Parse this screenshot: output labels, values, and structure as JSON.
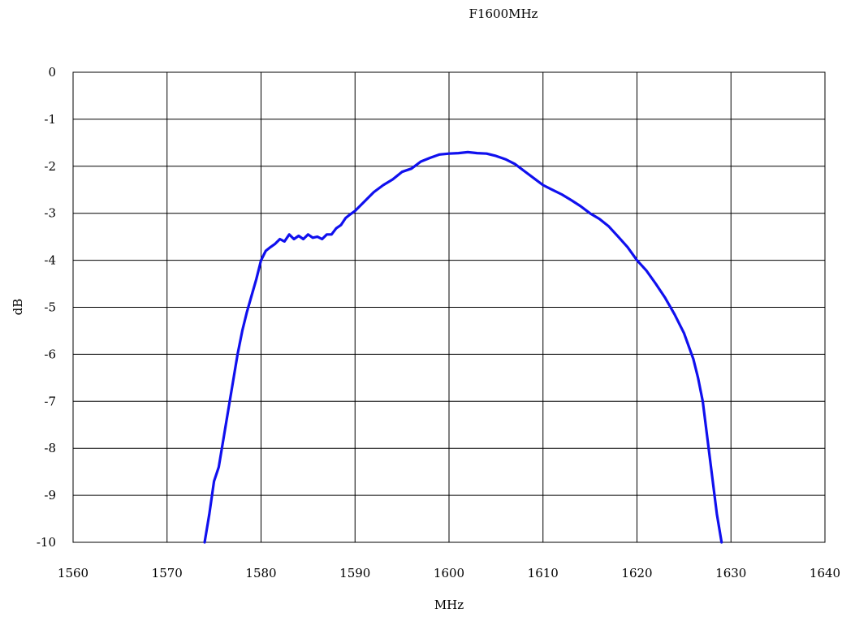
{
  "chart_data": {
    "type": "line",
    "title": "F1600MHz",
    "xlabel": "MHz",
    "ylabel": "dB",
    "xlim": [
      1560,
      1640
    ],
    "ylim": [
      -10,
      0
    ],
    "xticks": [
      1560,
      1570,
      1580,
      1590,
      1600,
      1610,
      1620,
      1630,
      1640
    ],
    "yticks": [
      0,
      -1,
      -2,
      -3,
      -4,
      -5,
      -6,
      -7,
      -8,
      -9,
      -10
    ],
    "grid": true,
    "line_color": "#1010ee",
    "series": [
      {
        "x": [
          1574,
          1574.5,
          1575,
          1575.5,
          1576,
          1576.5,
          1577,
          1577.5,
          1578,
          1578.5,
          1579,
          1579.5,
          1580,
          1580.5,
          1581,
          1581.5,
          1582,
          1582.5,
          1583,
          1583.5,
          1584,
          1584.5,
          1585,
          1585.5,
          1586,
          1586.5,
          1587,
          1587.5,
          1588,
          1588.5,
          1589,
          1589.5,
          1590,
          1591,
          1592,
          1593,
          1594,
          1595,
          1596,
          1597,
          1598,
          1599,
          1600,
          1601,
          1602,
          1603,
          1604,
          1605,
          1606,
          1607,
          1608,
          1609,
          1610,
          1611,
          1612,
          1613,
          1614,
          1615,
          1616,
          1617,
          1618,
          1619,
          1620,
          1621,
          1622,
          1623,
          1624,
          1625,
          1626,
          1626.5,
          1627,
          1627.5,
          1628,
          1628.5,
          1629
        ],
        "y": [
          -10,
          -9.4,
          -8.7,
          -8.4,
          -7.8,
          -7.2,
          -6.6,
          -6.0,
          -5.5,
          -5.1,
          -4.75,
          -4.4,
          -4.0,
          -3.8,
          -3.72,
          -3.65,
          -3.55,
          -3.6,
          -3.45,
          -3.55,
          -3.48,
          -3.55,
          -3.45,
          -3.52,
          -3.5,
          -3.55,
          -3.45,
          -3.45,
          -3.32,
          -3.25,
          -3.1,
          -3.02,
          -2.95,
          -2.75,
          -2.55,
          -2.4,
          -2.28,
          -2.12,
          -2.05,
          -1.9,
          -1.82,
          -1.75,
          -1.73,
          -1.72,
          -1.7,
          -1.72,
          -1.73,
          -1.78,
          -1.85,
          -1.95,
          -2.1,
          -2.25,
          -2.4,
          -2.5,
          -2.6,
          -2.72,
          -2.85,
          -3.0,
          -3.12,
          -3.28,
          -3.5,
          -3.72,
          -4.0,
          -4.22,
          -4.5,
          -4.8,
          -5.15,
          -5.55,
          -6.1,
          -6.5,
          -7.0,
          -7.8,
          -8.6,
          -9.4,
          -10
        ]
      }
    ]
  }
}
